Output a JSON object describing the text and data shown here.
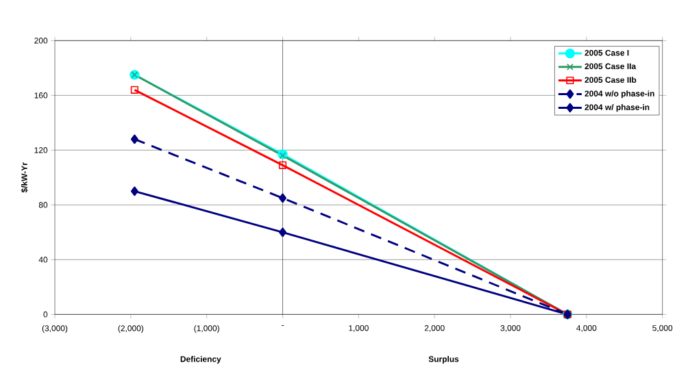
{
  "chart_data": {
    "type": "line",
    "ylabel": "$/kW-Yr",
    "annotations": [
      "Deficiency",
      "Surplus"
    ],
    "xlim": [
      -3000,
      5000
    ],
    "ylim": [
      0,
      200
    ],
    "xticks": [
      {
        "value": -3000,
        "label": "(3,000)"
      },
      {
        "value": -2000,
        "label": "(2,000)"
      },
      {
        "value": -1000,
        "label": "(1,000)"
      },
      {
        "value": 0,
        "label": "-"
      },
      {
        "value": 1000,
        "label": "1,000"
      },
      {
        "value": 2000,
        "label": "2,000"
      },
      {
        "value": 3000,
        "label": "3,000"
      },
      {
        "value": 4000,
        "label": "4,000"
      },
      {
        "value": 5000,
        "label": "5,000"
      }
    ],
    "yticks": [
      0,
      40,
      80,
      120,
      160,
      200
    ],
    "grid": "y",
    "legend": "top right",
    "ref_lines": [
      {
        "axis": "x",
        "value": 0
      }
    ],
    "series": [
      {
        "name": "2005 Case I",
        "color": "#00ffff",
        "marker": "circle",
        "line_style": "solid",
        "x": [
          -1950,
          0,
          3750
        ],
        "values": [
          175,
          117,
          0
        ]
      },
      {
        "name": "2005 Case IIa",
        "color": "#339966",
        "marker": "cross",
        "line_style": "solid",
        "x": [
          -1950,
          0,
          3750
        ],
        "values": [
          175,
          116,
          0
        ]
      },
      {
        "name": "2005 Case IIb",
        "color": "#ff0000",
        "marker": "square",
        "line_style": "solid",
        "x": [
          -1950,
          0,
          3750
        ],
        "values": [
          164,
          109,
          0
        ]
      },
      {
        "name": "2004 w/o phase-in",
        "color": "#000080",
        "marker": "diamond",
        "line_style": "dashed",
        "x": [
          -1950,
          0,
          3750
        ],
        "values": [
          128,
          85,
          0
        ]
      },
      {
        "name": "2004 w/ phase-in",
        "color": "#000080",
        "marker": "diamond",
        "line_style": "solid",
        "x": [
          -1950,
          0,
          3750
        ],
        "values": [
          90,
          60,
          0
        ]
      }
    ]
  }
}
